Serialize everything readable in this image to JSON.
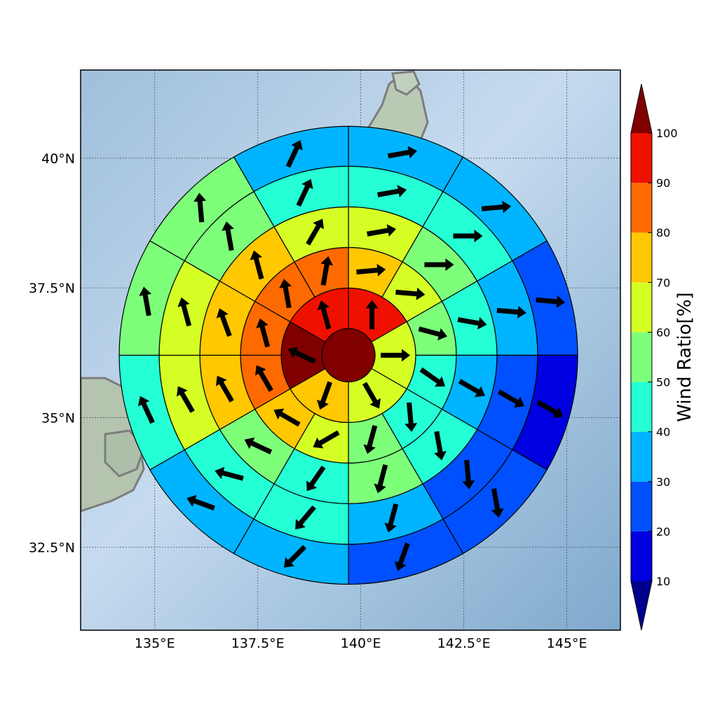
{
  "chart_data": {
    "type": "polar-sector-map",
    "map": {
      "x_ticks": [
        {
          "value": 135.0,
          "label": "135°E"
        },
        {
          "value": 137.5,
          "label": "137.5°E"
        },
        {
          "value": 140.0,
          "label": "140°E"
        },
        {
          "value": 142.5,
          "label": "142.5°E"
        },
        {
          "value": 145.0,
          "label": "145°E"
        }
      ],
      "y_ticks": [
        {
          "value": 32.5,
          "label": "32.5°N"
        },
        {
          "value": 35.0,
          "label": "35°N"
        },
        {
          "value": 37.5,
          "label": "37.5°N"
        },
        {
          "value": 40.0,
          "label": "40°N"
        }
      ],
      "xlim": [
        133.2,
        146.3
      ],
      "ylim": [
        30.9,
        41.7
      ],
      "grid": true,
      "center": {
        "lon": 139.7,
        "lat": 36.2
      }
    },
    "colorbar": {
      "title": "Wind Ratio[%]",
      "levels": [
        10,
        20,
        30,
        40,
        50,
        60,
        70,
        80,
        90,
        100
      ],
      "tick_labels": [
        "10",
        "20",
        "30",
        "40",
        "50",
        "60",
        "70",
        "80",
        "90",
        "100"
      ],
      "under_color": "#00008f",
      "over_color": "#800000",
      "colors": [
        "#0000e0",
        "#0050ff",
        "#00b4ff",
        "#24ffd5",
        "#7dff7a",
        "#d5ff24",
        "#ffc800",
        "#ff6a00",
        "#f01000"
      ]
    },
    "center_value": 100,
    "rings": [
      {
        "ring": 1,
        "sectors": [
          {
            "start": 0,
            "value": 94,
            "dir": 0
          },
          {
            "start": 60,
            "value": 67,
            "dir": 90
          },
          {
            "start": 120,
            "value": 64,
            "dir": 150
          },
          {
            "start": 180,
            "value": 74,
            "dir": 200
          },
          {
            "start": 240,
            "value": 102,
            "dir": 295
          },
          {
            "start": 300,
            "value": 95,
            "dir": 345
          }
        ]
      },
      {
        "ring": 2,
        "sectors": [
          {
            "start": 0,
            "value": 75,
            "dir": 85
          },
          {
            "start": 30,
            "value": 61,
            "dir": 95
          },
          {
            "start": 60,
            "value": 55,
            "dir": 105
          },
          {
            "start": 90,
            "value": 45,
            "dir": 125
          },
          {
            "start": 120,
            "value": 45,
            "dir": 175
          },
          {
            "start": 150,
            "value": 54,
            "dir": 195
          },
          {
            "start": 180,
            "value": 62,
            "dir": 240
          },
          {
            "start": 210,
            "value": 72,
            "dir": 300
          },
          {
            "start": 240,
            "value": 85,
            "dir": 330
          },
          {
            "start": 270,
            "value": 86,
            "dir": 345
          },
          {
            "start": 300,
            "value": 88,
            "dir": 350
          },
          {
            "start": 330,
            "value": 82,
            "dir": 10
          }
        ]
      },
      {
        "ring": 3,
        "sectors": [
          {
            "start": 0,
            "value": 64,
            "dir": 80
          },
          {
            "start": 30,
            "value": 57,
            "dir": 90
          },
          {
            "start": 60,
            "value": 46,
            "dir": 100
          },
          {
            "start": 90,
            "value": 37,
            "dir": 120
          },
          {
            "start": 120,
            "value": 44,
            "dir": 170
          },
          {
            "start": 150,
            "value": 54,
            "dir": 195
          },
          {
            "start": 180,
            "value": 46,
            "dir": 215
          },
          {
            "start": 210,
            "value": 52,
            "dir": 295
          },
          {
            "start": 240,
            "value": 73,
            "dir": 330
          },
          {
            "start": 270,
            "value": 73,
            "dir": 340
          },
          {
            "start": 300,
            "value": 72,
            "dir": 345
          },
          {
            "start": 330,
            "value": 64,
            "dir": 30
          }
        ]
      },
      {
        "ring": 4,
        "sectors": [
          {
            "start": 0,
            "value": 47,
            "dir": 80
          },
          {
            "start": 30,
            "value": 43,
            "dir": 90
          },
          {
            "start": 60,
            "value": 35,
            "dir": 95
          },
          {
            "start": 90,
            "value": 25,
            "dir": 120
          },
          {
            "start": 120,
            "value": 23,
            "dir": 175
          },
          {
            "start": 150,
            "value": 32,
            "dir": 195
          },
          {
            "start": 180,
            "value": 43,
            "dir": 220
          },
          {
            "start": 210,
            "value": 48,
            "dir": 285
          },
          {
            "start": 240,
            "value": 63,
            "dir": 330
          },
          {
            "start": 270,
            "value": 62,
            "dir": 345
          },
          {
            "start": 300,
            "value": 57,
            "dir": 350
          },
          {
            "start": 330,
            "value": 46,
            "dir": 25
          }
        ]
      },
      {
        "ring": 5,
        "sectors": [
          {
            "start": 0,
            "value": 37,
            "dir": 80
          },
          {
            "start": 30,
            "value": 34,
            "dir": 85
          },
          {
            "start": 60,
            "value": 25,
            "dir": 95
          },
          {
            "start": 90,
            "value": 12,
            "dir": 120
          },
          {
            "start": 120,
            "value": 24,
            "dir": 170
          },
          {
            "start": 150,
            "value": 24,
            "dir": 200
          },
          {
            "start": 180,
            "value": 33,
            "dir": 225
          },
          {
            "start": 210,
            "value": 36,
            "dir": 290
          },
          {
            "start": 240,
            "value": 44,
            "dir": 335
          },
          {
            "start": 270,
            "value": 52,
            "dir": 350
          },
          {
            "start": 300,
            "value": 52,
            "dir": 355
          },
          {
            "start": 330,
            "value": 36,
            "dir": 25
          }
        ]
      }
    ]
  }
}
